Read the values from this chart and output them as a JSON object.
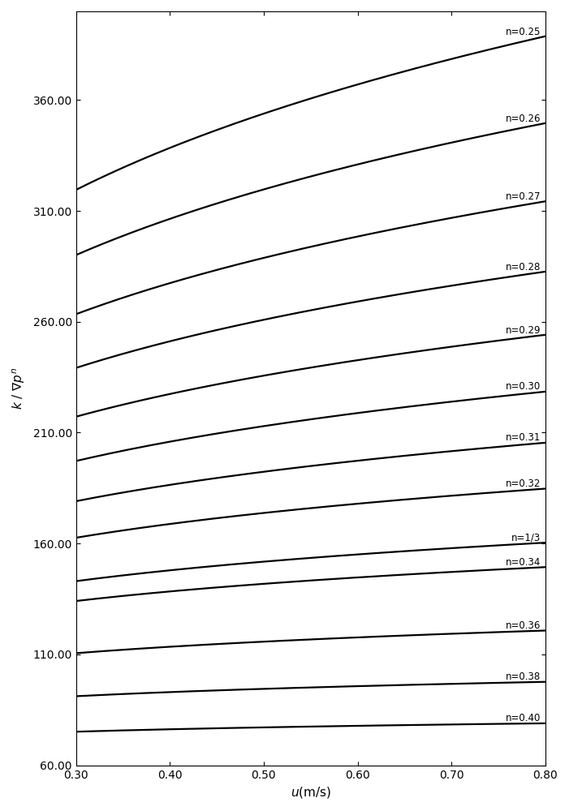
{
  "n_values": [
    0.25,
    0.26,
    0.27,
    0.28,
    0.29,
    0.3,
    0.31,
    0.32,
    0.3333,
    0.34,
    0.36,
    0.38,
    0.4
  ],
  "n_labels": [
    "n=0.25",
    "n=0.26",
    "n=0.27",
    "n=0.28",
    "n=0.29",
    "n=0.30",
    "n=0.31",
    "n=0.32",
    "n=1/3",
    "n=0.34",
    "n=0.36",
    "n=0.38",
    "n=0.40"
  ],
  "u_min": 0.3,
  "u_max": 0.8,
  "y_min": 60.0,
  "y_max": 400.0,
  "x_ticks": [
    0.3,
    0.4,
    0.5,
    0.6,
    0.7,
    0.8
  ],
  "y_ticks": [
    60.0,
    110.0,
    160.0,
    210.0,
    260.0,
    310.0,
    360.0
  ],
  "xlabel": "$u$(m/s)",
  "ylabel": "$k$ / $\\nabla p^n$",
  "line_color": "#000000",
  "line_width": 1.6,
  "background_color": "#ffffff",
  "figsize": [
    7.01,
    10.0
  ],
  "dpi": 100
}
